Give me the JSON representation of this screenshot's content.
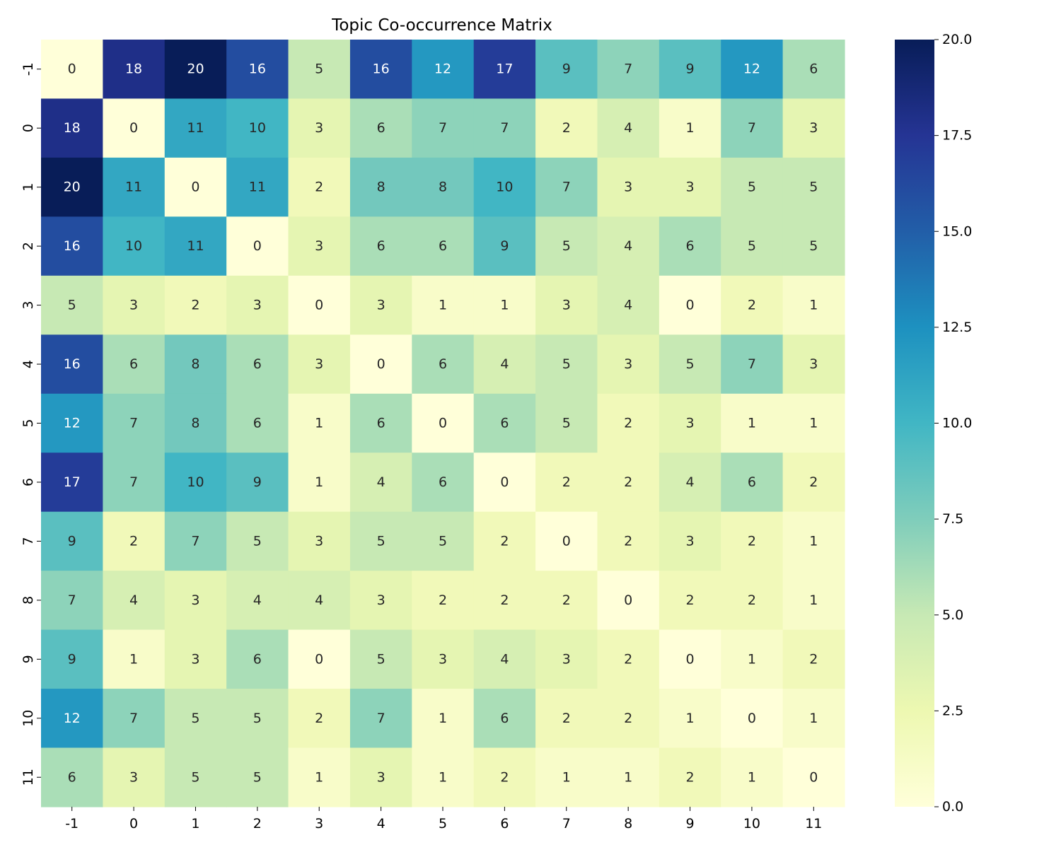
{
  "chart_data": {
    "type": "heatmap",
    "title": "Topic Co-occurrence Matrix",
    "xlabel": "",
    "ylabel": "",
    "x_labels": [
      "-1",
      "0",
      "1",
      "2",
      "3",
      "4",
      "5",
      "6",
      "7",
      "8",
      "9",
      "10",
      "11"
    ],
    "y_labels": [
      "-1",
      "0",
      "1",
      "2",
      "3",
      "4",
      "5",
      "6",
      "7",
      "8",
      "9",
      "10",
      "11"
    ],
    "matrix": [
      [
        0,
        18,
        20,
        16,
        5,
        16,
        12,
        17,
        9,
        7,
        9,
        12,
        6
      ],
      [
        18,
        0,
        11,
        10,
        3,
        6,
        7,
        7,
        2,
        4,
        1,
        7,
        3
      ],
      [
        20,
        11,
        0,
        11,
        2,
        8,
        8,
        10,
        7,
        3,
        3,
        5,
        5
      ],
      [
        16,
        10,
        11,
        0,
        3,
        6,
        6,
        9,
        5,
        4,
        6,
        5,
        5
      ],
      [
        5,
        3,
        2,
        3,
        0,
        3,
        1,
        1,
        3,
        4,
        0,
        2,
        1
      ],
      [
        16,
        6,
        8,
        6,
        3,
        0,
        6,
        4,
        5,
        3,
        5,
        7,
        3
      ],
      [
        12,
        7,
        8,
        6,
        1,
        6,
        0,
        6,
        5,
        2,
        3,
        1,
        1
      ],
      [
        17,
        7,
        10,
        9,
        1,
        4,
        6,
        0,
        2,
        2,
        4,
        6,
        2
      ],
      [
        9,
        2,
        7,
        5,
        3,
        5,
        5,
        2,
        0,
        2,
        3,
        2,
        1
      ],
      [
        7,
        4,
        3,
        4,
        4,
        3,
        2,
        2,
        2,
        0,
        2,
        2,
        1
      ],
      [
        9,
        1,
        3,
        6,
        0,
        5,
        3,
        4,
        3,
        2,
        0,
        1,
        2
      ],
      [
        12,
        7,
        5,
        5,
        2,
        7,
        1,
        6,
        2,
        2,
        1,
        0,
        1
      ],
      [
        6,
        3,
        5,
        5,
        1,
        3,
        1,
        2,
        1,
        1,
        2,
        1,
        0
      ]
    ],
    "colorscale": "YlGnBu",
    "vmin": 0,
    "vmax": 20,
    "colorbar_ticks": [
      "0.0",
      "2.5",
      "5.0",
      "7.5",
      "10.0",
      "12.5",
      "15.0",
      "17.5",
      "20.0"
    ],
    "annotations": true,
    "grid": false
  }
}
